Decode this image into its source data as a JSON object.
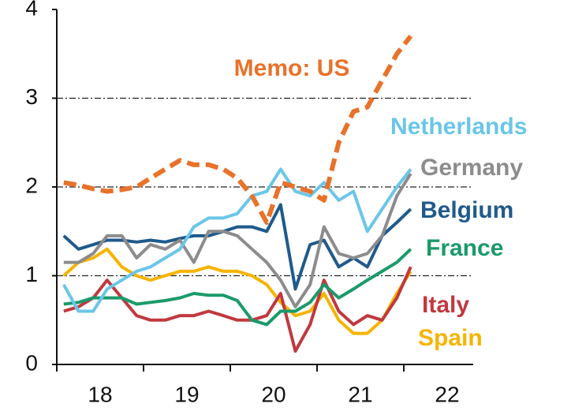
{
  "chart_data": {
    "type": "line",
    "x": [
      2018.08,
      2018.25,
      2018.42,
      2018.58,
      2018.75,
      2018.92,
      2019.08,
      2019.25,
      2019.42,
      2019.58,
      2019.75,
      2019.92,
      2020.08,
      2020.25,
      2020.42,
      2020.58,
      2020.75,
      2020.92,
      2021.08,
      2021.25,
      2021.42,
      2021.58,
      2021.75,
      2021.92,
      2022.08
    ],
    "series": [
      {
        "name": "Memo: US",
        "color": "#e8722a",
        "dashed": true,
        "values": [
          2.05,
          2.02,
          1.98,
          1.95,
          1.97,
          2.0,
          2.1,
          2.2,
          2.3,
          2.25,
          2.25,
          2.2,
          2.1,
          1.9,
          1.6,
          2.05,
          2.0,
          1.95,
          1.85,
          2.5,
          2.85,
          2.9,
          3.2,
          3.5,
          3.7
        ]
      },
      {
        "name": "Netherlands",
        "color": "#6ac6e8",
        "values": [
          0.9,
          0.6,
          0.6,
          0.85,
          0.95,
          1.05,
          1.1,
          1.2,
          1.3,
          1.55,
          1.65,
          1.65,
          1.7,
          1.9,
          1.95,
          2.2,
          1.95,
          1.9,
          2.05,
          1.85,
          1.95,
          1.5,
          1.75,
          2.0,
          2.2
        ]
      },
      {
        "name": "Germany",
        "color": "#8c8c8c",
        "values": [
          1.15,
          1.15,
          1.25,
          1.45,
          1.45,
          1.2,
          1.35,
          1.3,
          1.4,
          1.15,
          1.5,
          1.5,
          1.45,
          1.3,
          1.15,
          0.95,
          0.65,
          0.9,
          1.55,
          1.25,
          1.2,
          1.25,
          1.45,
          1.9,
          2.15
        ]
      },
      {
        "name": "Belgium",
        "color": "#1f5a8c",
        "values": [
          1.45,
          1.3,
          1.35,
          1.4,
          1.4,
          1.38,
          1.4,
          1.38,
          1.42,
          1.45,
          1.45,
          1.5,
          1.55,
          1.55,
          1.5,
          1.8,
          0.85,
          1.35,
          1.4,
          1.1,
          1.2,
          1.1,
          1.45,
          1.6,
          1.75
        ]
      },
      {
        "name": "France",
        "color": "#1a9a6a",
        "values": [
          0.68,
          0.7,
          0.75,
          0.75,
          0.75,
          0.68,
          0.7,
          0.72,
          0.75,
          0.8,
          0.78,
          0.78,
          0.72,
          0.5,
          0.45,
          0.6,
          0.6,
          0.7,
          0.9,
          0.75,
          0.85,
          0.95,
          1.05,
          1.15,
          1.3
        ]
      },
      {
        "name": "Italy",
        "color": "#c0393f",
        "values": [
          0.6,
          0.65,
          0.75,
          0.95,
          0.75,
          0.55,
          0.5,
          0.5,
          0.55,
          0.55,
          0.6,
          0.55,
          0.5,
          0.5,
          0.55,
          0.8,
          0.15,
          0.45,
          0.95,
          0.6,
          0.45,
          0.55,
          0.5,
          0.75,
          1.1
        ]
      },
      {
        "name": "Spain",
        "color": "#f5b400",
        "values": [
          1.0,
          1.15,
          1.2,
          1.3,
          1.1,
          1.0,
          0.95,
          1.0,
          1.05,
          1.05,
          1.1,
          1.05,
          1.05,
          1.0,
          0.9,
          0.7,
          0.55,
          0.6,
          0.8,
          0.5,
          0.35,
          0.35,
          0.5,
          0.8,
          1.05
        ]
      }
    ],
    "xlim": [
      2018,
      2022.8
    ],
    "xticks": [
      {
        "value": 2018.5,
        "label": "18"
      },
      {
        "value": 2019.5,
        "label": "19"
      },
      {
        "value": 2020.5,
        "label": "20"
      },
      {
        "value": 2021.5,
        "label": "21"
      },
      {
        "value": 2022.5,
        "label": "22"
      }
    ],
    "xminorticks": [
      2018,
      2019,
      2020,
      2021,
      2022
    ],
    "ylim": [
      0,
      4
    ],
    "yticks": [
      0,
      1,
      2,
      3,
      4
    ],
    "grid": true
  }
}
